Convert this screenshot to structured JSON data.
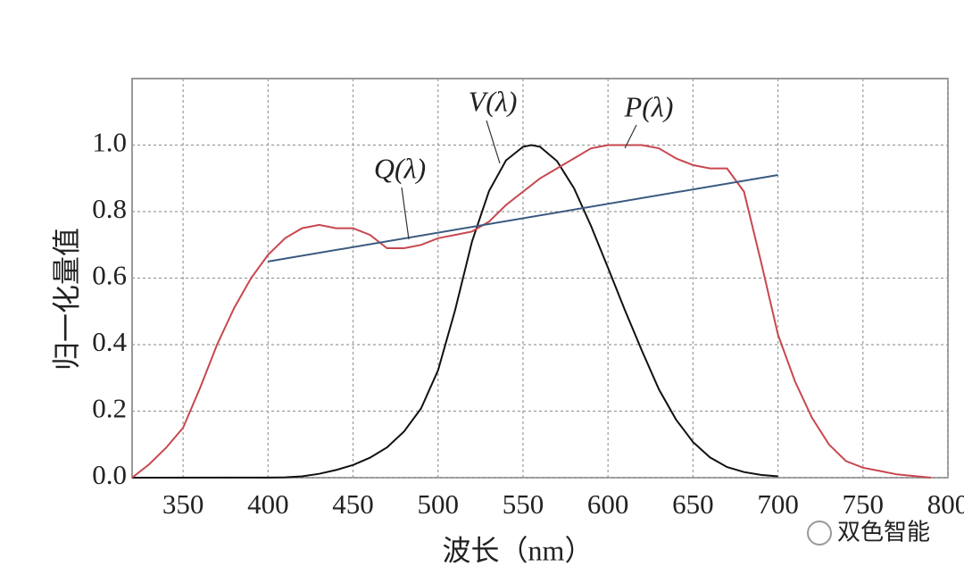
{
  "chart_data": {
    "type": "line",
    "xlabel": "波长（nm）",
    "ylabel": "归一化量值",
    "watermark": "双色智能",
    "xlim": [
      320,
      800
    ],
    "ylim": [
      0,
      1.2
    ],
    "xticks": [
      350,
      400,
      450,
      500,
      550,
      600,
      650,
      700,
      750,
      800
    ],
    "yticks": [
      {
        "value": 0,
        "label": "0.0"
      },
      0.2,
      0.4,
      0.6,
      0.8,
      {
        "value": 1,
        "label": "1.0"
      }
    ],
    "grid": true,
    "series": [
      {
        "name": "V(λ)",
        "color": "#111111",
        "x": [
          320,
          400,
          410,
          420,
          430,
          440,
          450,
          460,
          470,
          480,
          490,
          500,
          510,
          520,
          530,
          540,
          550,
          555,
          560,
          570,
          580,
          590,
          600,
          610,
          620,
          630,
          640,
          650,
          660,
          670,
          680,
          690,
          700
        ],
        "values": [
          0,
          0.0004,
          0.0012,
          0.004,
          0.0116,
          0.023,
          0.038,
          0.06,
          0.091,
          0.139,
          0.208,
          0.323,
          0.503,
          0.71,
          0.862,
          0.954,
          0.995,
          1.0,
          0.995,
          0.952,
          0.87,
          0.757,
          0.631,
          0.503,
          0.381,
          0.265,
          0.175,
          0.107,
          0.061,
          0.032,
          0.017,
          0.0082,
          0.0041
        ]
      },
      {
        "name": "P(λ)",
        "color": "#c8474f",
        "x": [
          320,
          330,
          340,
          350,
          360,
          370,
          380,
          390,
          400,
          410,
          420,
          430,
          440,
          450,
          460,
          470,
          480,
          490,
          500,
          510,
          520,
          530,
          540,
          550,
          560,
          570,
          580,
          590,
          600,
          610,
          620,
          630,
          640,
          650,
          660,
          670,
          680,
          690,
          700,
          710,
          720,
          730,
          740,
          750,
          760,
          770,
          780,
          790
        ],
        "values": [
          0,
          0.04,
          0.09,
          0.15,
          0.27,
          0.4,
          0.51,
          0.6,
          0.67,
          0.72,
          0.75,
          0.76,
          0.75,
          0.75,
          0.73,
          0.69,
          0.69,
          0.7,
          0.72,
          0.73,
          0.74,
          0.77,
          0.82,
          0.86,
          0.9,
          0.93,
          0.96,
          0.99,
          1.0,
          1.0,
          1.0,
          0.99,
          0.96,
          0.94,
          0.93,
          0.93,
          0.86,
          0.65,
          0.43,
          0.29,
          0.18,
          0.1,
          0.05,
          0.03,
          0.02,
          0.01,
          0.005,
          0
        ]
      },
      {
        "name": "Q(λ)",
        "color": "#3a5a80",
        "x": [
          400,
          700
        ],
        "values": [
          0.65,
          0.91
        ]
      }
    ]
  }
}
